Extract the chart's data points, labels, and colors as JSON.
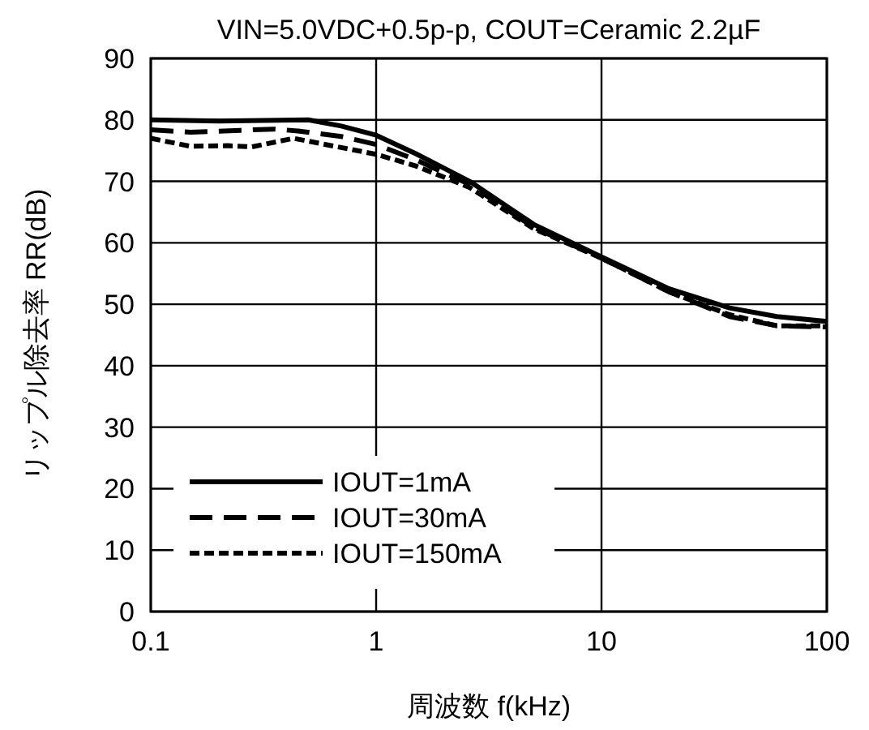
{
  "chart_data": {
    "type": "line",
    "title": "VIN=5.0VDC+0.5p-p, COUT=Ceramic 2.2µF",
    "xlabel": "周波数 f(kHz)",
    "ylabel": "リップル除去率 RR(dB)",
    "log": "x",
    "xlim": [
      0.1,
      100
    ],
    "xticks": [
      0.1,
      1,
      10,
      100
    ],
    "ylim": [
      0,
      90
    ],
    "yticks": [
      0,
      10,
      20,
      30,
      40,
      50,
      60,
      70,
      80,
      90
    ],
    "grid": true,
    "legend": "bottom left",
    "series": [
      {
        "name": "IOUT=1mA",
        "color": "#000000",
        "line_style": "solid",
        "x": [
          0.1,
          0.2,
          0.5,
          0.7,
          1,
          1.5,
          2.6,
          5,
          10,
          20,
          37,
          60,
          100
        ],
        "values": [
          80,
          79.8,
          80,
          79,
          77.5,
          74.5,
          70,
          63,
          57.7,
          52.5,
          49.4,
          48,
          47.2
        ]
      },
      {
        "name": "IOUT=30mA",
        "color": "#000000",
        "line_style": "dashed",
        "x": [
          0.1,
          0.15,
          0.25,
          0.35,
          0.45,
          0.7,
          1,
          1.5,
          2.6,
          5,
          10,
          20,
          37,
          60,
          100
        ],
        "values": [
          78.4,
          78,
          78.3,
          78.5,
          78.2,
          77.3,
          76,
          73.5,
          69.5,
          62.5,
          57.5,
          52,
          48,
          46.5,
          46.3
        ]
      },
      {
        "name": "IOUT=150mA",
        "color": "#000000",
        "line_style": "dotted",
        "x": [
          0.1,
          0.15,
          0.22,
          0.28,
          0.43,
          0.7,
          1,
          1.5,
          2.6,
          5,
          10,
          20,
          37,
          60,
          100
        ],
        "values": [
          77,
          75.7,
          75.8,
          75.6,
          77,
          75.5,
          74.4,
          72.5,
          69,
          62.3,
          57.5,
          52,
          48.3,
          46.5,
          46.5
        ]
      }
    ]
  }
}
